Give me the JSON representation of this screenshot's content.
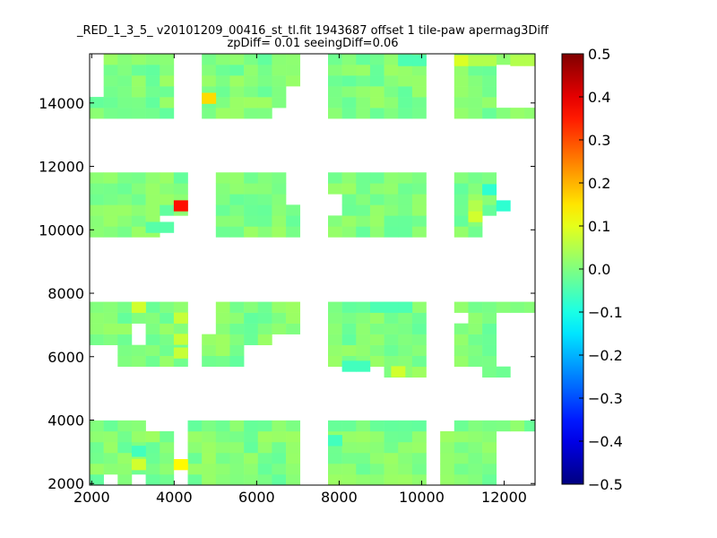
{
  "chart_data": {
    "type": "heatmap",
    "title": [
      "_RED_1_3_5_ v20101209_00416_st_tl.fit 1943687 offset 1 tile-paw apermag3Diff",
      "zpDiff= 0.01 seeingDiff=0.06"
    ],
    "xlabel": "",
    "ylabel": "",
    "xlim": [
      1950,
      12750
    ],
    "ylim": [
      1950,
      15550
    ],
    "xticks": [
      2000,
      4000,
      6000,
      8000,
      10000,
      12000
    ],
    "yticks": [
      2000,
      4000,
      6000,
      8000,
      10000,
      12000,
      14000
    ],
    "colorbar": {
      "colormap": "jet",
      "range": [
        -0.5,
        0.5
      ],
      "ticks": [
        -0.5,
        -0.4,
        -0.3,
        -0.2,
        -0.1,
        0.0,
        0.1,
        0.2,
        0.3,
        0.4,
        0.5
      ],
      "tick_labels": [
        "−0.5",
        "−0.4",
        "−0.3",
        "−0.2",
        "−0.1",
        "0.0",
        "0.1",
        "0.2",
        "0.3",
        "0.4",
        "0.5"
      ]
    },
    "cell_size": 340,
    "base_value": 0.0,
    "regions": [
      {
        "x": [
          2290,
          3990
        ],
        "y": [
          13470,
          15510
        ]
      },
      {
        "x": [
          1950,
          2290
        ],
        "y": [
          13470,
          14150
        ]
      },
      {
        "x": [
          4670,
          6710
        ],
        "y": [
          13470,
          15510
        ]
      },
      {
        "x": [
          6710,
          7050
        ],
        "y": [
          14490,
          15510
        ]
      },
      {
        "x": [
          7730,
          10110
        ],
        "y": [
          13470,
          15510
        ]
      },
      {
        "x": [
          10790,
          11810
        ],
        "y": [
          13470,
          15510
        ]
      },
      {
        "x": [
          11810,
          12750
        ],
        "y": [
          13470,
          13810
        ]
      },
      {
        "x": [
          11810,
          12750
        ],
        "y": [
          15170,
          15510
        ]
      },
      {
        "x": [
          1950,
          4330
        ],
        "y": [
          9740,
          11780
        ]
      },
      {
        "x": [
          4990,
          7050
        ],
        "y": [
          9740,
          11780
        ]
      },
      {
        "x": [
          7730,
          10110
        ],
        "y": [
          9740,
          11780
        ]
      },
      {
        "x": [
          10790,
          11810
        ],
        "y": [
          9740,
          11780
        ]
      },
      {
        "x": [
          1950,
          4330
        ],
        "y": [
          5700,
          7900
        ]
      },
      {
        "x": [
          4670,
          7050
        ],
        "y": [
          5700,
          7900
        ]
      },
      {
        "x": [
          7730,
          10110
        ],
        "y": [
          5700,
          7900
        ]
      },
      {
        "x": [
          9130,
          10110
        ],
        "y": [
          5360,
          5700
        ]
      },
      {
        "x": [
          10790,
          11810
        ],
        "y": [
          5700,
          7900
        ]
      },
      {
        "x": [
          11810,
          12750
        ],
        "y": [
          7560,
          7900
        ]
      },
      {
        "x": [
          11470,
          12150
        ],
        "y": [
          5360,
          5700
        ]
      },
      {
        "x": [
          1950,
          3310
        ],
        "y": [
          1950,
          4040
        ]
      },
      {
        "x": [
          3310,
          3990
        ],
        "y": [
          1950,
          3700
        ]
      },
      {
        "x": [
          4330,
          7050
        ],
        "y": [
          1950,
          4040
        ]
      },
      {
        "x": [
          7730,
          10110
        ],
        "y": [
          1950,
          4040
        ]
      },
      {
        "x": [
          10450,
          11810
        ],
        "y": [
          1950,
          3700
        ]
      },
      {
        "x": [
          10790,
          12750
        ],
        "y": [
          3700,
          4040
        ]
      }
    ],
    "holes": [
      {
        "x": [
          11810,
          12750
        ],
        "y": [
          13810,
          15170
        ]
      },
      {
        "x": [
          4330,
          4670
        ],
        "y": [
          13470,
          15510
        ]
      },
      {
        "x": [
          6370,
          7050
        ],
        "y": [
          13470,
          13810
        ]
      },
      {
        "x": [
          3650,
          4330
        ],
        "y": [
          9740,
          10420
        ]
      },
      {
        "x": [
          11470,
          11810
        ],
        "y": [
          9740,
          10420
        ]
      },
      {
        "x": [
          7730,
          8070
        ],
        "y": [
          10420,
          11100
        ]
      },
      {
        "x": [
          6710,
          7050
        ],
        "y": [
          10760,
          11780
        ]
      },
      {
        "x": [
          1950,
          2630
        ],
        "y": [
          5700,
          6380
        ]
      },
      {
        "x": [
          2970,
          3310
        ],
        "y": [
          6380,
          7220
        ]
      },
      {
        "x": [
          4330,
          4670
        ],
        "y": [
          5700,
          7900
        ]
      },
      {
        "x": [
          4670,
          4990
        ],
        "y": [
          6720,
          7900
        ]
      },
      {
        "x": [
          5690,
          6370
        ],
        "y": [
          5700,
          6380
        ]
      },
      {
        "x": [
          6370,
          7050
        ],
        "y": [
          5700,
          6710
        ]
      },
      {
        "x": [
          11810,
          12750
        ],
        "y": [
          5700,
          7220
        ]
      },
      {
        "x": [
          10790,
          11130
        ],
        "y": [
          7220,
          7560
        ]
      },
      {
        "x": [
          2290,
          2630
        ],
        "y": [
          1950,
          2290
        ]
      },
      {
        "x": [
          2970,
          3310
        ],
        "y": [
          1950,
          2290
        ]
      }
    ],
    "value_cells": [
      {
        "x": 4840,
        "y": 14150,
        "value": 0.16
      },
      {
        "x": 4160,
        "y": 10760,
        "value": 0.36
      },
      {
        "x": 4160,
        "y": 2600,
        "value": 0.13
      },
      {
        "x": 11640,
        "y": 11270,
        "value": -0.08
      },
      {
        "x": 11980,
        "y": 10760,
        "value": -0.08
      },
      {
        "x": 9940,
        "y": 15340,
        "value": -0.05
      },
      {
        "x": 9600,
        "y": 15340,
        "value": -0.05
      },
      {
        "x": 8240,
        "y": 5700,
        "value": -0.06
      },
      {
        "x": 8580,
        "y": 5700,
        "value": -0.06
      },
      {
        "x": 8920,
        "y": 7560,
        "value": -0.05
      },
      {
        "x": 9260,
        "y": 7560,
        "value": -0.05
      },
      {
        "x": 9600,
        "y": 7560,
        "value": -0.05
      },
      {
        "x": 7900,
        "y": 3360,
        "value": -0.06
      },
      {
        "x": 3140,
        "y": 3020,
        "value": -0.06
      },
      {
        "x": 3480,
        "y": 10080,
        "value": -0.04
      },
      {
        "x": 3820,
        "y": 10080,
        "value": -0.04
      },
      {
        "x": 9430,
        "y": 5530,
        "value": 0.08
      },
      {
        "x": 3140,
        "y": 7560,
        "value": 0.08
      },
      {
        "x": 3140,
        "y": 2600,
        "value": 0.08
      },
      {
        "x": 4160,
        "y": 7220,
        "value": 0.07
      },
      {
        "x": 4160,
        "y": 6550,
        "value": 0.07
      },
      {
        "x": 4160,
        "y": 6120,
        "value": 0.07
      },
      {
        "x": 10960,
        "y": 15340,
        "value": 0.09
      },
      {
        "x": 11640,
        "y": 15340,
        "value": 0.05
      },
      {
        "x": 11300,
        "y": 15340,
        "value": 0.05
      },
      {
        "x": 12320,
        "y": 15340,
        "value": 0.05
      },
      {
        "x": 12660,
        "y": 15340,
        "value": 0.05
      },
      {
        "x": 11300,
        "y": 10420,
        "value": 0.08
      },
      {
        "x": 11300,
        "y": 10760,
        "value": 0.05
      }
    ]
  }
}
